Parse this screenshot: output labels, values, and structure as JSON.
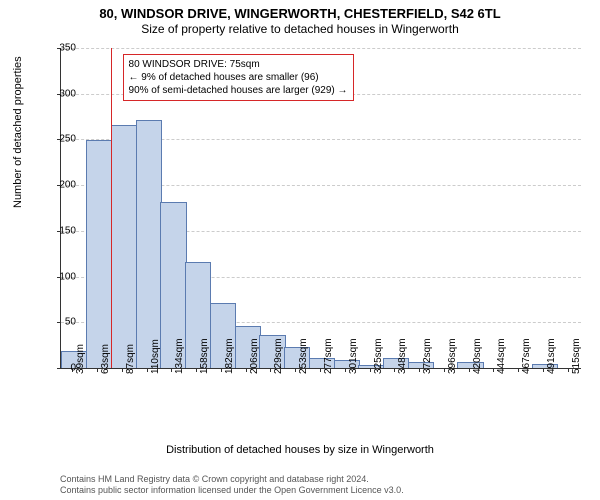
{
  "title": "80, WINDSOR DRIVE, WINGERWORTH, CHESTERFIELD, S42 6TL",
  "subtitle": "Size of property relative to detached houses in Wingerworth",
  "chart": {
    "type": "histogram",
    "x_axis_label": "Distribution of detached houses by size in Wingerworth",
    "y_axis_label": "Number of detached properties",
    "ylim": [
      0,
      350
    ],
    "ytick_step": 50,
    "x_categories": [
      "39sqm",
      "63sqm",
      "87sqm",
      "110sqm",
      "134sqm",
      "158sqm",
      "182sqm",
      "206sqm",
      "229sqm",
      "253sqm",
      "277sqm",
      "301sqm",
      "325sqm",
      "348sqm",
      "372sqm",
      "396sqm",
      "420sqm",
      "444sqm",
      "467sqm",
      "491sqm",
      "515sqm"
    ],
    "values": [
      18,
      248,
      265,
      270,
      180,
      115,
      70,
      45,
      35,
      22,
      10,
      8,
      2,
      10,
      5,
      0,
      6,
      0,
      0,
      3,
      0
    ],
    "bar_fill": "#c5d4ea",
    "bar_stroke": "#5b7bb0",
    "background_color": "#ffffff",
    "grid_color": "#cccccc",
    "highlight_x": 75,
    "highlight_color": "#d62728",
    "x_start": 39,
    "x_step": 24
  },
  "annotation": {
    "line1": "80 WINDSOR DRIVE: 75sqm",
    "line2": "← 9% of detached houses are smaller (96)",
    "line3": "90% of semi-detached houses are larger (929) →",
    "border_color": "#d62728"
  },
  "footer": {
    "line1": "Contains HM Land Registry data © Crown copyright and database right 2024.",
    "line2": "Contains public sector information licensed under the Open Government Licence v3.0."
  }
}
